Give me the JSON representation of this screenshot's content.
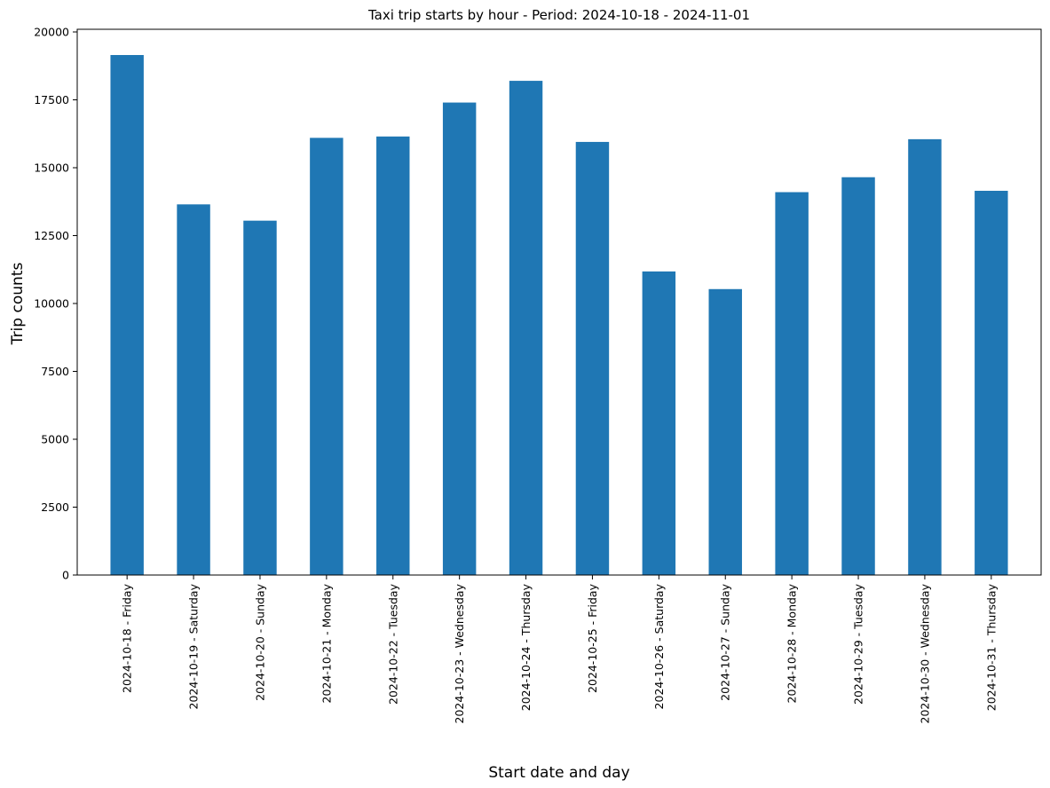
{
  "chart_data": {
    "type": "bar",
    "title": "Taxi trip starts by hour - Period: 2024-10-18 - 2024-11-01",
    "xlabel": "Start date and day",
    "ylabel": "Trip counts",
    "categories": [
      "2024-10-18 - Friday",
      "2024-10-19 - Saturday",
      "2024-10-20 - Sunday",
      "2024-10-21 - Monday",
      "2024-10-22 - Tuesday",
      "2024-10-23 - Wednesday",
      "2024-10-24 - Thursday",
      "2024-10-25 - Friday",
      "2024-10-26 - Saturday",
      "2024-10-27 - Sunday",
      "2024-10-28 - Monday",
      "2024-10-29 - Tuesday",
      "2024-10-30 - Wednesday",
      "2024-10-31 - Thursday"
    ],
    "values": [
      19150,
      13650,
      13050,
      16100,
      16150,
      17400,
      18200,
      15950,
      11180,
      10530,
      14100,
      14650,
      16050,
      14150
    ],
    "ylim": [
      0,
      20000
    ],
    "yticks": [
      0,
      2500,
      5000,
      7500,
      10000,
      12500,
      15000,
      17500,
      20000
    ],
    "bar_color": "#1f77b4",
    "grid": false,
    "legend": "none"
  }
}
